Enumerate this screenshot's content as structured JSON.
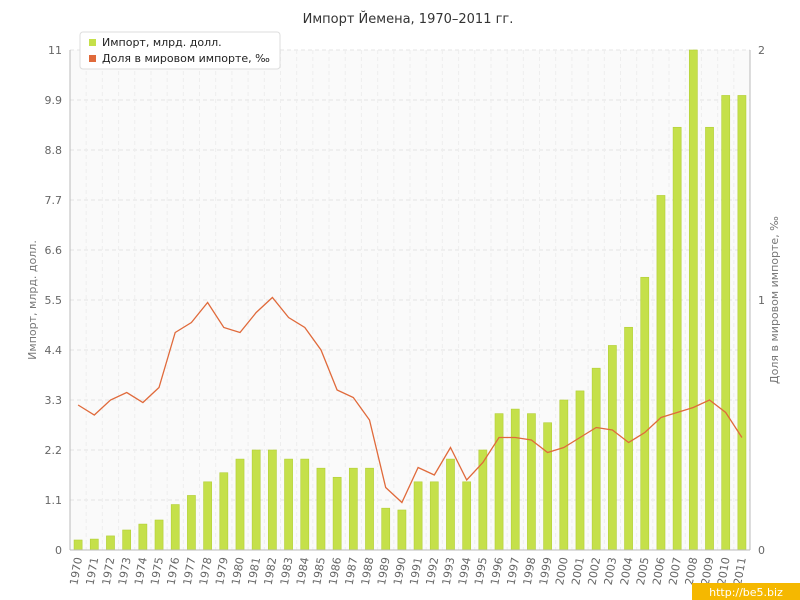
{
  "chart_data": {
    "type": "bar",
    "title": "Импорт Йемена, 1970–2011 гг.",
    "ylabel": "Импорт, млрд. долл.",
    "ylabel_right": "Доля в мировом импорте, ‰",
    "ylim": [
      0,
      11
    ],
    "ylim_right": [
      0,
      2
    ],
    "yticks": [
      "0",
      "1.1",
      "2.2",
      "3.3",
      "4.4",
      "5.5",
      "6.6",
      "7.7",
      "8.8",
      "9.9",
      "11"
    ],
    "yticks_right": [
      "0",
      "1",
      "2"
    ],
    "legend_position": "top-left",
    "grid": true,
    "categories": [
      "1970",
      "1971",
      "1972",
      "1973",
      "1974",
      "1975",
      "1976",
      "1977",
      "1978",
      "1979",
      "1980",
      "1981",
      "1982",
      "1983",
      "1984",
      "1985",
      "1986",
      "1987",
      "1988",
      "1989",
      "1990",
      "1991",
      "1992",
      "1993",
      "1994",
      "1995",
      "1996",
      "1997",
      "1998",
      "1999",
      "2000",
      "2001",
      "2002",
      "2003",
      "2004",
      "2005",
      "2006",
      "2007",
      "2008",
      "2009",
      "2010",
      "2011"
    ],
    "series": [
      {
        "name": "Импорт, млрд. долл.",
        "kind": "bar",
        "axis": "left",
        "color": "#c5e04a",
        "values": [
          0.22,
          0.24,
          0.31,
          0.44,
          0.57,
          0.66,
          1.0,
          1.2,
          1.5,
          1.7,
          2.0,
          2.2,
          2.2,
          2.0,
          2.0,
          1.8,
          1.6,
          1.8,
          1.8,
          0.92,
          0.88,
          1.5,
          1.5,
          2.0,
          1.5,
          2.2,
          3.0,
          3.1,
          3.0,
          2.8,
          3.3,
          3.5,
          4.0,
          4.5,
          4.9,
          6.0,
          7.8,
          9.3,
          11.0,
          9.3,
          10.0,
          10.0
        ]
      },
      {
        "name": "Доля в мировом импорте, ‰",
        "kind": "line",
        "axis": "right",
        "color": "#e06a3b",
        "values": [
          0.58,
          0.54,
          0.6,
          0.63,
          0.59,
          0.65,
          0.87,
          0.91,
          0.99,
          0.89,
          0.87,
          0.95,
          1.01,
          0.93,
          0.89,
          0.8,
          0.64,
          0.61,
          0.52,
          0.25,
          0.19,
          0.33,
          0.3,
          0.41,
          0.28,
          0.35,
          0.45,
          0.45,
          0.44,
          0.39,
          0.41,
          0.45,
          0.49,
          0.48,
          0.43,
          0.47,
          0.53,
          0.55,
          0.57,
          0.6,
          0.55,
          0.45
        ]
      }
    ]
  },
  "watermark": "http://be5.biz"
}
